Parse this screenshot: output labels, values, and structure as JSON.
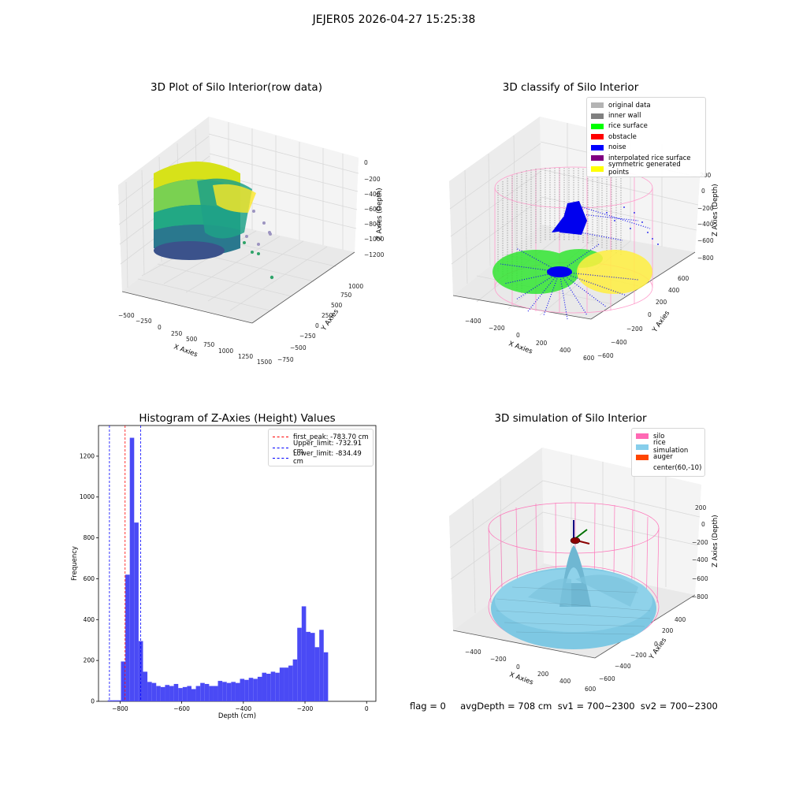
{
  "suptitle": "JEJER05 2026-04-27 15:25:38",
  "footer": "flag = 0     avgDepth = 708 cm  sv1 = 700~2300  sv2 = 700~2300",
  "panel_raw": {
    "title": "3D Plot of Silo Interior(row data)",
    "x_label": "X Axies",
    "y_label": "Y Axies",
    "z_label": "Z Axies (Depth)",
    "x_ticks": [
      "−500",
      "−250",
      "0",
      "250",
      "500",
      "750",
      "1000",
      "1250",
      "1500"
    ],
    "y_ticks": [
      "−750",
      "−500",
      "−250",
      "0",
      "250",
      "500",
      "750",
      "1000"
    ],
    "z_ticks": [
      "0",
      "−200",
      "−400",
      "−600",
      "−800",
      "−1000",
      "−1200"
    ]
  },
  "panel_classify": {
    "title": "3D classify of Silo Interior",
    "x_label": "X Axies",
    "y_label": "Y Axies",
    "z_label": "Z Axies (Depth)",
    "x_ticks": [
      "−400",
      "−200",
      "0",
      "200",
      "400",
      "600"
    ],
    "y_ticks": [
      "−600",
      "−400",
      "−200",
      "0",
      "200",
      "400",
      "600"
    ],
    "z_ticks": [
      "200",
      "0",
      "−200",
      "−400",
      "−600",
      "−800"
    ],
    "legend": [
      {
        "label": "original data",
        "color": "#b4b4b4"
      },
      {
        "label": "inner wall",
        "color": "#808080"
      },
      {
        "label": "rice surface",
        "color": "#00ff00"
      },
      {
        "label": "obstacle",
        "color": "#ff0000"
      },
      {
        "label": "noise",
        "color": "#0000ff"
      },
      {
        "label": "interpolated rice surface",
        "color": "#800080"
      },
      {
        "label": "symmetric generated points",
        "color": "#ffff00"
      }
    ]
  },
  "panel_sim": {
    "title": "3D simulation of Silo Interior",
    "x_label": "X Axies",
    "y_label": "Y Axies",
    "z_label": "Z Axies (Depth)",
    "x_ticks": [
      "−400",
      "−200",
      "0",
      "200",
      "400",
      "600"
    ],
    "y_ticks": [
      "−600",
      "−400",
      "−200",
      "0",
      "200",
      "400"
    ],
    "z_ticks": [
      "200",
      "0",
      "−200",
      "−400",
      "−600",
      "−800"
    ],
    "legend": [
      {
        "label": "silo",
        "color": "#ff69b4"
      },
      {
        "label": "rice simulation",
        "color": "#87ceeb"
      },
      {
        "label": "auger",
        "color": "#ff4500"
      },
      {
        "label": "center(60,-10)",
        "color": ""
      }
    ]
  },
  "chart_data": {
    "type": "bar",
    "title": "Histogram of Z-Axies (Height) Values",
    "xlabel": "Depth (cm)",
    "ylabel": "Frequency",
    "xlim": [
      -870,
      30
    ],
    "ylim": [
      0,
      1350
    ],
    "x_ticks": [
      -800,
      -600,
      -400,
      -200,
      0
    ],
    "y_ticks": [
      0,
      200,
      400,
      600,
      800,
      1000,
      1200
    ],
    "bar_color": "#4a4af5",
    "bin_start": -840,
    "bin_width": 14.3,
    "values": [
      5,
      5,
      5,
      195,
      620,
      1290,
      875,
      295,
      145,
      95,
      90,
      75,
      70,
      80,
      75,
      85,
      65,
      70,
      75,
      60,
      75,
      90,
      85,
      75,
      75,
      100,
      95,
      90,
      95,
      90,
      110,
      105,
      115,
      110,
      120,
      140,
      135,
      145,
      140,
      165,
      165,
      175,
      205,
      360,
      465,
      340,
      335,
      265,
      350,
      240
    ],
    "lines": [
      {
        "label": "first_peak: -783.70 cm",
        "x": -783.7,
        "color": "#ff0000"
      },
      {
        "label": "Upper_limit: -732.91 cm",
        "x": -732.91,
        "color": "#0000ff"
      },
      {
        "label": "Lower_limit: -834.49 cm",
        "x": -834.49,
        "color": "#0000ff"
      }
    ]
  }
}
